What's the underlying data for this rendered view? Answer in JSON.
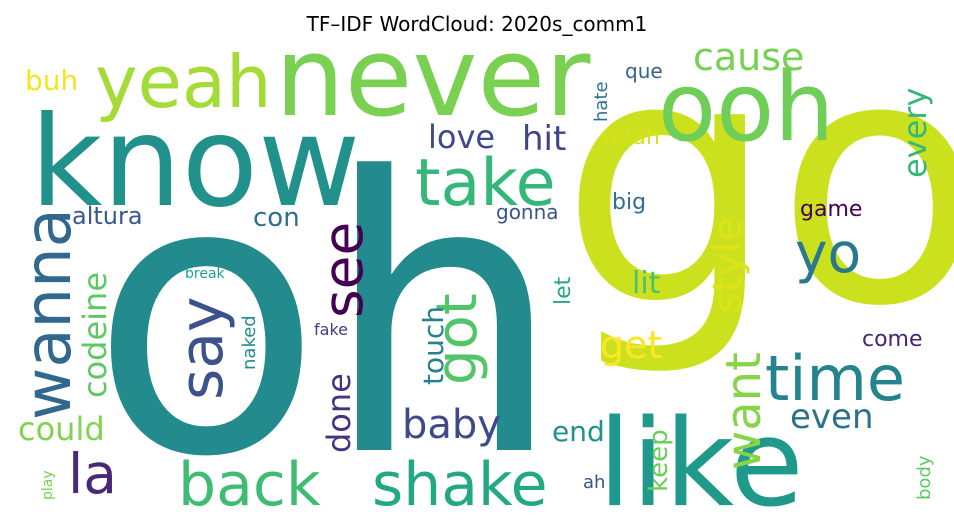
{
  "chart_data": {
    "type": "wordcloud",
    "title": "TF–IDF WordCloud: 2020s_comm1",
    "words": [
      {
        "text": "oh",
        "color": "#238a8d"
      },
      {
        "text": "go",
        "color": "#cbe11e"
      },
      {
        "text": "know",
        "color": "#21918c"
      },
      {
        "text": "never",
        "color": "#7ad151"
      },
      {
        "text": "ooh",
        "color": "#6ece58"
      },
      {
        "text": "like",
        "color": "#1f9a8a"
      },
      {
        "text": "yeah",
        "color": "#a5db36"
      },
      {
        "text": "take",
        "color": "#35b779"
      },
      {
        "text": "back",
        "color": "#3fbc73"
      },
      {
        "text": "shake",
        "color": "#22a884"
      },
      {
        "text": "time",
        "color": "#25838e"
      },
      {
        "text": "wanna",
        "color": "#31688e"
      },
      {
        "text": "say",
        "color": "#3b528b"
      },
      {
        "text": "see",
        "color": "#440154"
      },
      {
        "text": "got",
        "color": "#52c569"
      },
      {
        "text": "yo",
        "color": "#2a788e"
      },
      {
        "text": "la",
        "color": "#482878"
      },
      {
        "text": "want",
        "color": "#86d549"
      },
      {
        "text": "baby",
        "color": "#3e4a89"
      },
      {
        "text": "style",
        "color": "#dde318"
      },
      {
        "text": "codeine",
        "color": "#5ec962"
      },
      {
        "text": "cause",
        "color": "#75d054"
      },
      {
        "text": "every",
        "color": "#35b779"
      },
      {
        "text": "love",
        "color": "#3e4989"
      },
      {
        "text": "hit",
        "color": "#414487"
      },
      {
        "text": "get",
        "color": "#fde725"
      },
      {
        "text": "even",
        "color": "#2c728e"
      },
      {
        "text": "touch",
        "color": "#26828e"
      },
      {
        "text": "done",
        "color": "#46327e"
      },
      {
        "text": "could",
        "color": "#7fd34e"
      },
      {
        "text": "end",
        "color": "#21918c"
      },
      {
        "text": "keep",
        "color": "#6ccd5a"
      },
      {
        "text": "con",
        "color": "#2e6f8e"
      },
      {
        "text": "altura",
        "color": "#38598c"
      },
      {
        "text": "buh",
        "color": "#f4e61e"
      },
      {
        "text": "game",
        "color": "#440154"
      },
      {
        "text": "come",
        "color": "#482475"
      },
      {
        "text": "lit",
        "color": "#4ac16d"
      },
      {
        "text": "gonna",
        "color": "#3a548c"
      },
      {
        "text": "let",
        "color": "#23a983"
      },
      {
        "text": "big",
        "color": "#2d708e"
      },
      {
        "text": "woah",
        "color": "#d8e219"
      },
      {
        "text": "que",
        "color": "#33638d"
      },
      {
        "text": "hate",
        "color": "#2b758e"
      },
      {
        "text": "body",
        "color": "#5ec962"
      },
      {
        "text": "naked",
        "color": "#228d8d"
      },
      {
        "text": "break",
        "color": "#20a386"
      },
      {
        "text": "fake",
        "color": "#443a83"
      },
      {
        "text": "ah",
        "color": "#3b528b"
      },
      {
        "text": "play",
        "color": "#7ad151"
      }
    ]
  }
}
